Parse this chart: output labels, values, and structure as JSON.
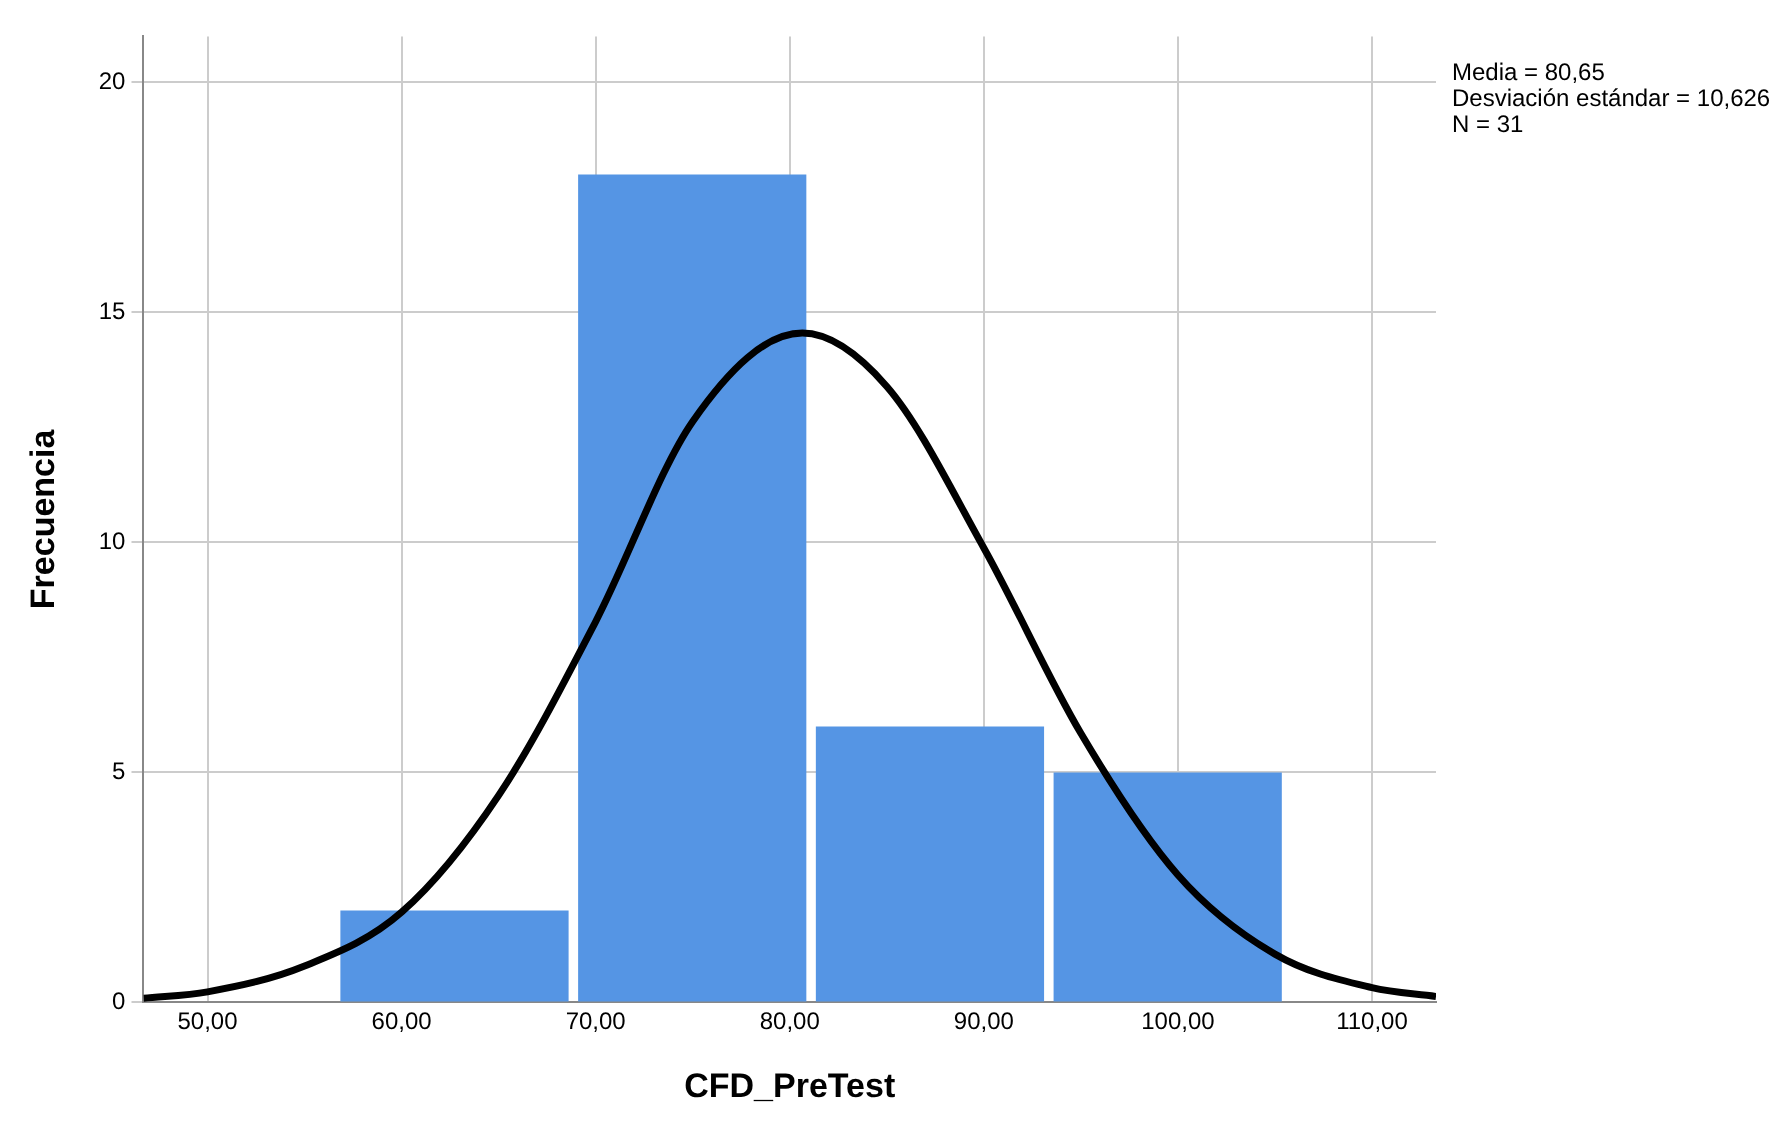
{
  "chart_data": {
    "type": "histogram",
    "xlabel": "CFD_PreTest",
    "ylabel": "Frecuencia",
    "bins": [
      56.6,
      68.85,
      81.1,
      93.35,
      105.6
    ],
    "values": [
      2,
      18,
      6,
      5
    ],
    "color": "#5595e4",
    "series": [
      {
        "type": "line",
        "color": "#000000",
        "x": [
          46.7,
          50,
          55,
          60,
          65,
          70,
          75,
          80.65,
          85,
          90,
          95,
          100,
          105,
          110,
          113.3
        ],
        "values": [
          0.09,
          0.23,
          0.79,
          1.96,
          4.5,
          8.28,
          12.63,
          14.55,
          13.39,
          9.88,
          5.85,
          2.77,
          1.05,
          0.32,
          0.13
        ]
      }
    ],
    "xlim": [
      46.7,
      113.3
    ],
    "xticks": [
      {
        "value": 50,
        "label": "50,00"
      },
      {
        "value": 60,
        "label": "60,00"
      },
      {
        "value": 70,
        "label": "70,00"
      },
      {
        "value": 80,
        "label": "80,00"
      },
      {
        "value": 90,
        "label": "90,00"
      },
      {
        "value": 100,
        "label": "100,00"
      },
      {
        "value": 110,
        "label": "110,00"
      }
    ],
    "ylim": [
      0,
      21
    ],
    "yticks": [
      0,
      5,
      10,
      15,
      20
    ],
    "grid": true,
    "legend": false,
    "marker": "none",
    "line_style": "solid",
    "annotations": [
      "Media = 80,65",
      "Desviación estándar = 10,626",
      "N = 31"
    ]
  }
}
